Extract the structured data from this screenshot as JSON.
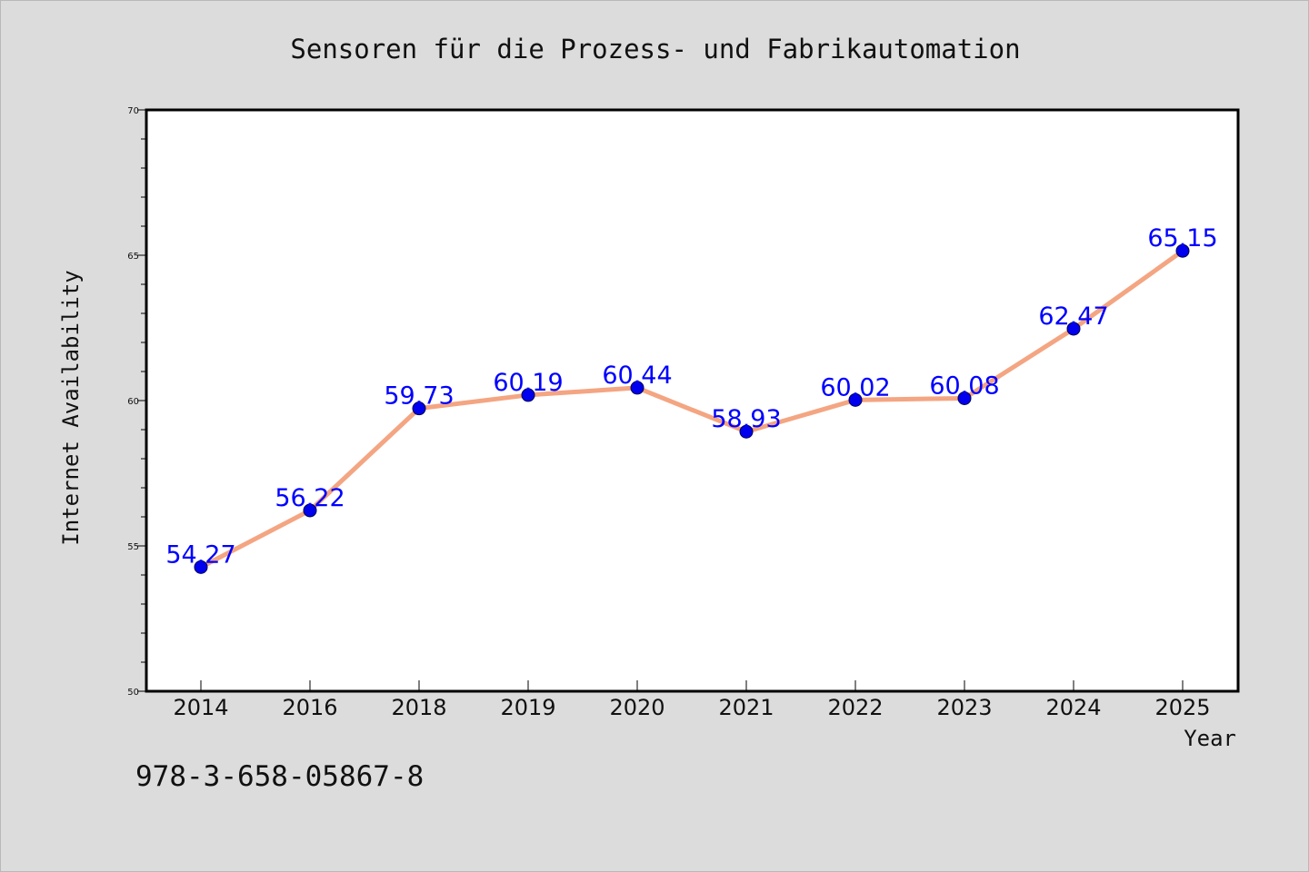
{
  "chart_data": {
    "type": "line",
    "title": "Sensoren für die Prozess- und Fabrikautomation",
    "xlabel": "Year",
    "ylabel": "Internet Availability",
    "categories": [
      "2014",
      "2016",
      "2018",
      "2019",
      "2020",
      "2021",
      "2022",
      "2023",
      "2024",
      "2025"
    ],
    "values": [
      54.27,
      56.22,
      59.73,
      60.19,
      60.44,
      58.93,
      60.02,
      60.08,
      62.47,
      65.15
    ],
    "value_labels": [
      "54.27",
      "56.22",
      "59.73",
      "60.19",
      "60.44",
      "58.93",
      "60.02",
      "60.08",
      "62.47",
      "65.15"
    ],
    "ylim": [
      50,
      70
    ],
    "yticks": [
      50,
      55,
      60,
      65,
      70
    ],
    "ytick_labels": [
      "50",
      "55",
      "60",
      "65",
      "70"
    ],
    "grid": false,
    "legend": "none",
    "line_color": "#f4a582",
    "marker_color": "#0000ee",
    "label_color": "#0000ff",
    "background_color": "#dcdcdc",
    "plot_background_color": "#ffffff"
  },
  "footer": {
    "isbn": "978-3-658-05867-8"
  }
}
